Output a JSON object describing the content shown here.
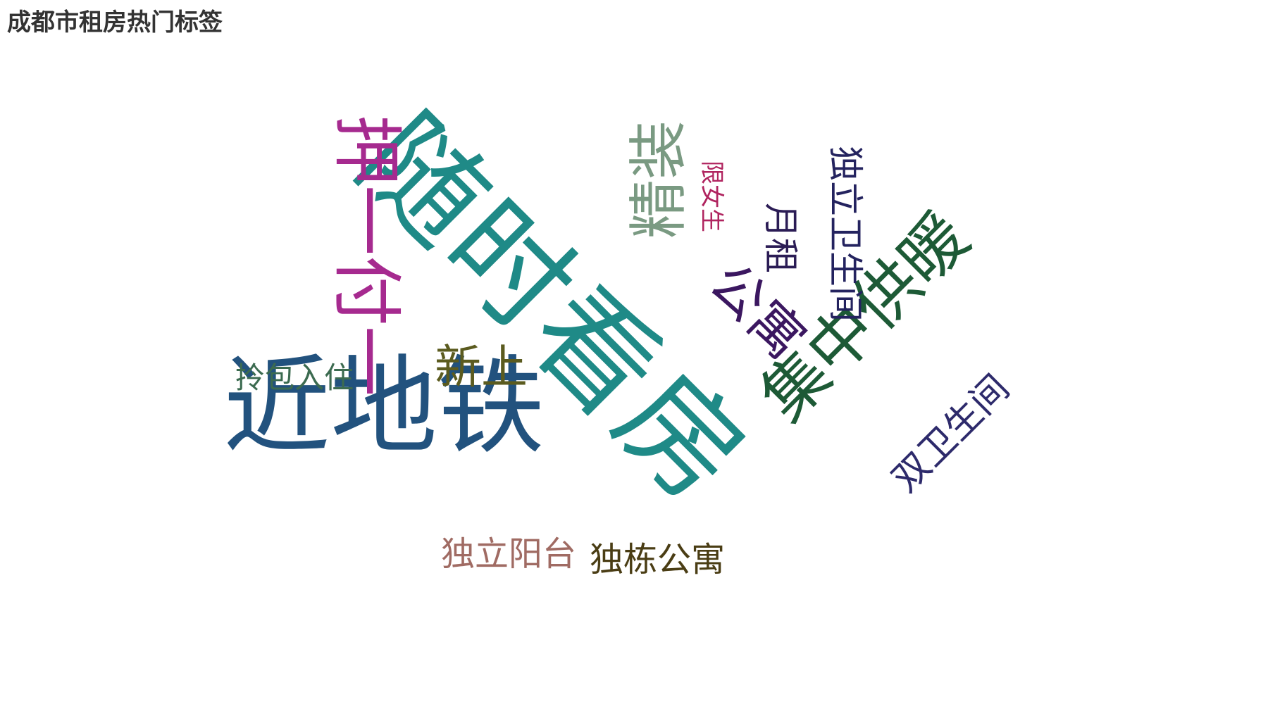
{
  "chart_data": {
    "type": "wordcloud",
    "title": "成都市租房热门标签",
    "words": [
      {
        "text": "随时看房",
        "weight": 100,
        "color": "#1f8a87"
      },
      {
        "text": "近地铁",
        "weight": 82,
        "color": "#22527e"
      },
      {
        "text": "押一付一",
        "weight": 55,
        "color": "#a62a8f"
      },
      {
        "text": "集中供暖",
        "weight": 52,
        "color": "#1d5a36"
      },
      {
        "text": "精装",
        "weight": 45,
        "color": "#7a9a82"
      },
      {
        "text": "公寓",
        "weight": 42,
        "color": "#3b1760"
      },
      {
        "text": "新上",
        "weight": 36,
        "color": "#5b5b1f"
      },
      {
        "text": "双卫生间",
        "weight": 33,
        "color": "#2d2a6b"
      },
      {
        "text": "独立卫生间",
        "weight": 33,
        "color": "#24235f"
      },
      {
        "text": "月租",
        "weight": 32,
        "color": "#2b1c55"
      },
      {
        "text": "独栋公寓",
        "weight": 29,
        "color": "#4a3d14"
      },
      {
        "text": "独立阳台",
        "weight": 29,
        "color": "#a06b63"
      },
      {
        "text": "拎包入住",
        "weight": 26,
        "color": "#3c6b50"
      },
      {
        "text": "限女生",
        "weight": 20,
        "color": "#b0245f"
      }
    ]
  }
}
